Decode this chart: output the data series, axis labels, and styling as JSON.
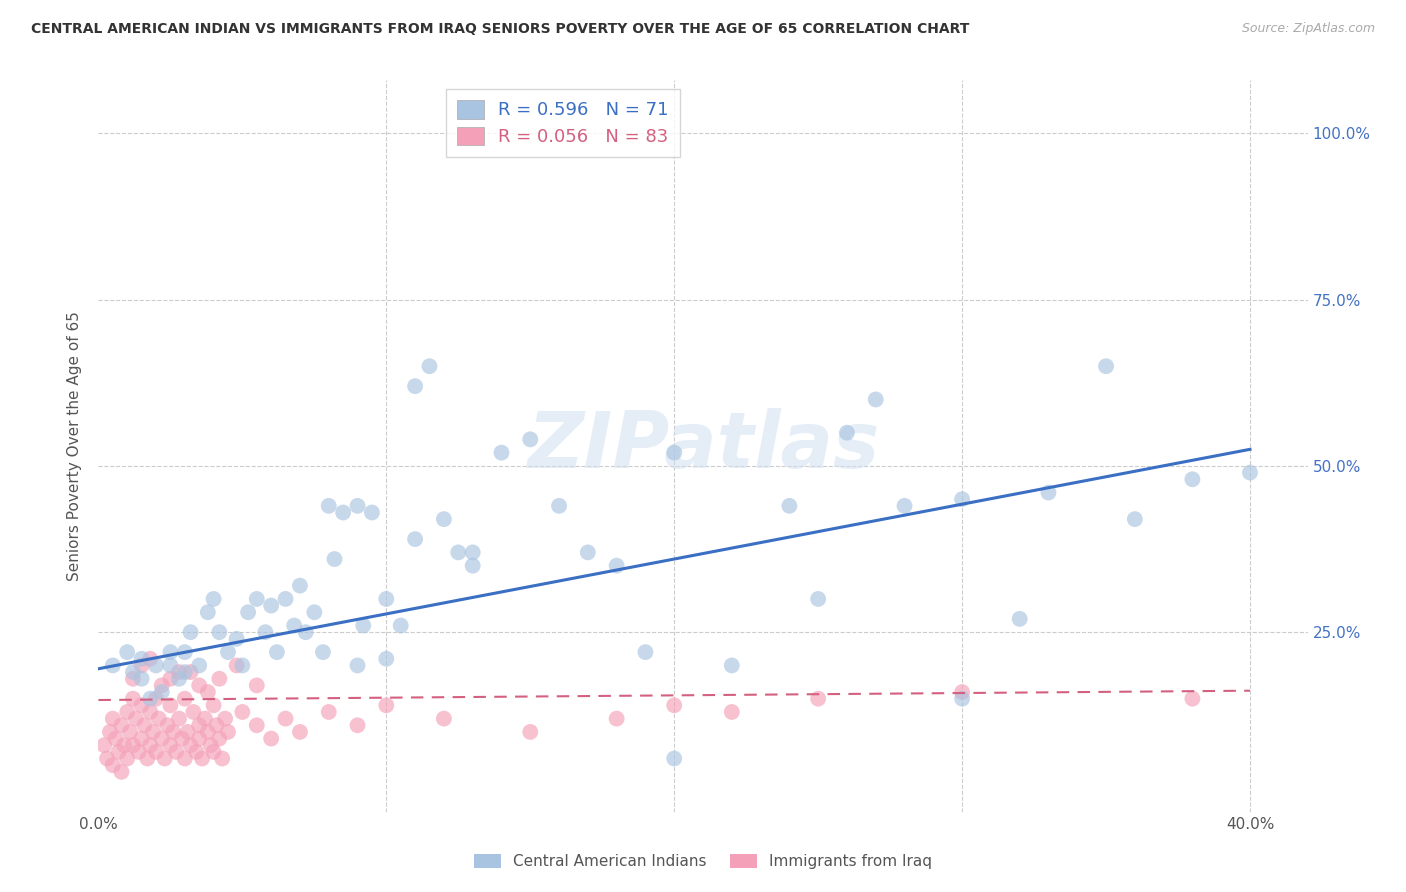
{
  "title": "CENTRAL AMERICAN INDIAN VS IMMIGRANTS FROM IRAQ SENIORS POVERTY OVER THE AGE OF 65 CORRELATION CHART",
  "source": "Source: ZipAtlas.com",
  "ylabel": "Seniors Poverty Over the Age of 65",
  "background_color": "#ffffff",
  "grid_color": "#cccccc",
  "right_tick_color": "#4472c4",
  "xlim": [
    0.0,
    0.42
  ],
  "ylim": [
    -0.02,
    1.08
  ],
  "blue_R": 0.596,
  "blue_N": 71,
  "pink_R": 0.056,
  "pink_N": 83,
  "blue_color": "#a8c4e0",
  "pink_color": "#f4a0b8",
  "blue_line_color": "#3a6fc4",
  "pink_line_color": "#d46080",
  "watermark_text": "ZIPatlas",
  "legend_label_blue": "Central American Indians",
  "legend_label_pink": "Immigrants from Iraq",
  "blue_line_x0": 0.0,
  "blue_line_y0": 0.195,
  "blue_line_x1": 0.4,
  "blue_line_y1": 0.525,
  "pink_line_x0": 0.0,
  "pink_line_y0": 0.148,
  "pink_line_x1": 0.4,
  "pink_line_y1": 0.162,
  "blue_scatter_x": [
    0.005,
    0.01,
    0.012,
    0.015,
    0.015,
    0.018,
    0.02,
    0.022,
    0.025,
    0.025,
    0.028,
    0.03,
    0.03,
    0.032,
    0.035,
    0.038,
    0.04,
    0.042,
    0.045,
    0.048,
    0.05,
    0.052,
    0.055,
    0.058,
    0.06,
    0.062,
    0.065,
    0.068,
    0.07,
    0.072,
    0.075,
    0.078,
    0.08,
    0.082,
    0.085,
    0.09,
    0.092,
    0.095,
    0.1,
    0.105,
    0.11,
    0.115,
    0.12,
    0.125,
    0.13,
    0.09,
    0.1,
    0.11,
    0.13,
    0.14,
    0.15,
    0.16,
    0.17,
    0.18,
    0.19,
    0.2,
    0.22,
    0.24,
    0.26,
    0.28,
    0.3,
    0.32,
    0.33,
    0.35,
    0.36,
    0.38,
    0.4,
    0.27,
    0.3,
    0.25,
    0.2
  ],
  "blue_scatter_y": [
    0.2,
    0.22,
    0.19,
    0.21,
    0.18,
    0.15,
    0.2,
    0.16,
    0.22,
    0.2,
    0.18,
    0.19,
    0.22,
    0.25,
    0.2,
    0.28,
    0.3,
    0.25,
    0.22,
    0.24,
    0.2,
    0.28,
    0.3,
    0.25,
    0.29,
    0.22,
    0.3,
    0.26,
    0.32,
    0.25,
    0.28,
    0.22,
    0.44,
    0.36,
    0.43,
    0.44,
    0.26,
    0.43,
    0.3,
    0.26,
    0.62,
    0.65,
    0.42,
    0.37,
    0.37,
    0.2,
    0.21,
    0.39,
    0.35,
    0.52,
    0.54,
    0.44,
    0.37,
    0.35,
    0.22,
    0.52,
    0.2,
    0.44,
    0.55,
    0.44,
    0.45,
    0.27,
    0.46,
    0.65,
    0.42,
    0.48,
    0.49,
    0.6,
    0.15,
    0.3,
    0.06
  ],
  "pink_scatter_x": [
    0.002,
    0.003,
    0.004,
    0.005,
    0.005,
    0.006,
    0.007,
    0.008,
    0.008,
    0.009,
    0.01,
    0.01,
    0.011,
    0.012,
    0.012,
    0.013,
    0.014,
    0.015,
    0.015,
    0.016,
    0.017,
    0.018,
    0.018,
    0.019,
    0.02,
    0.02,
    0.021,
    0.022,
    0.023,
    0.024,
    0.025,
    0.025,
    0.026,
    0.027,
    0.028,
    0.029,
    0.03,
    0.03,
    0.031,
    0.032,
    0.033,
    0.034,
    0.035,
    0.035,
    0.036,
    0.037,
    0.038,
    0.039,
    0.04,
    0.04,
    0.041,
    0.042,
    0.043,
    0.044,
    0.045,
    0.05,
    0.055,
    0.06,
    0.065,
    0.07,
    0.08,
    0.09,
    0.1,
    0.12,
    0.15,
    0.18,
    0.2,
    0.22,
    0.25,
    0.012,
    0.018,
    0.025,
    0.032,
    0.038,
    0.015,
    0.022,
    0.028,
    0.035,
    0.042,
    0.048,
    0.055,
    0.3,
    0.38
  ],
  "pink_scatter_y": [
    0.08,
    0.06,
    0.1,
    0.12,
    0.05,
    0.09,
    0.07,
    0.11,
    0.04,
    0.08,
    0.13,
    0.06,
    0.1,
    0.08,
    0.15,
    0.12,
    0.07,
    0.14,
    0.09,
    0.11,
    0.06,
    0.13,
    0.08,
    0.1,
    0.15,
    0.07,
    0.12,
    0.09,
    0.06,
    0.11,
    0.14,
    0.08,
    0.1,
    0.07,
    0.12,
    0.09,
    0.15,
    0.06,
    0.1,
    0.08,
    0.13,
    0.07,
    0.11,
    0.09,
    0.06,
    0.12,
    0.1,
    0.08,
    0.14,
    0.07,
    0.11,
    0.09,
    0.06,
    0.12,
    0.1,
    0.13,
    0.11,
    0.09,
    0.12,
    0.1,
    0.13,
    0.11,
    0.14,
    0.12,
    0.1,
    0.12,
    0.14,
    0.13,
    0.15,
    0.18,
    0.21,
    0.18,
    0.19,
    0.16,
    0.2,
    0.17,
    0.19,
    0.17,
    0.18,
    0.2,
    0.17,
    0.16,
    0.15
  ]
}
